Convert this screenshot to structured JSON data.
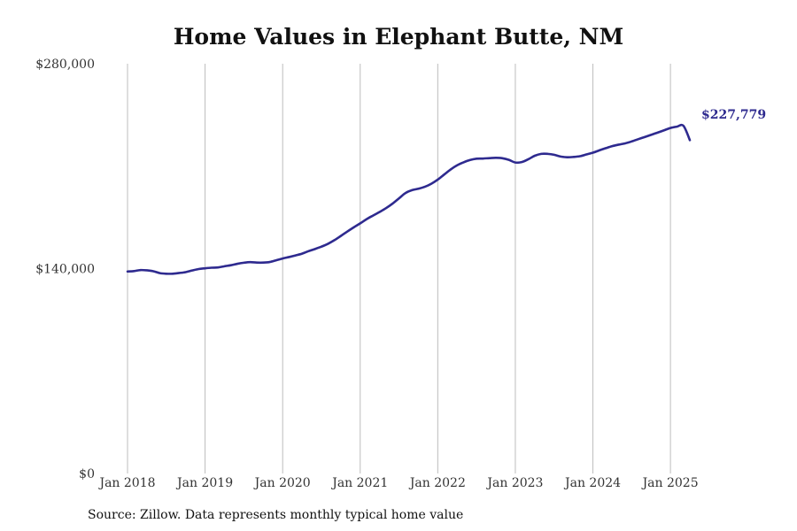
{
  "chart_data": {
    "type": "line",
    "title": "Home Values in Elephant Butte, NM",
    "xlabel": "",
    "ylabel": "",
    "ylim": [
      0,
      280000
    ],
    "yticks": [
      {
        "value": 0,
        "label": "$0"
      },
      {
        "value": 140000,
        "label": "$140,000"
      },
      {
        "value": 280000,
        "label": "$280,000"
      }
    ],
    "xlim": [
      2018.0,
      2025.25
    ],
    "xticks": [
      {
        "value": 2018,
        "label": "Jan 2018"
      },
      {
        "value": 2019,
        "label": "Jan 2019"
      },
      {
        "value": 2020,
        "label": "Jan 2020"
      },
      {
        "value": 2021,
        "label": "Jan 2021"
      },
      {
        "value": 2022,
        "label": "Jan 2022"
      },
      {
        "value": 2023,
        "label": "Jan 2023"
      },
      {
        "value": 2024,
        "label": "Jan 2024"
      },
      {
        "value": 2025,
        "label": "Jan 2025"
      }
    ],
    "grid": {
      "vertical": true,
      "horizontal": false
    },
    "line_color": "#2e2a8f",
    "end_label": "$227,779",
    "series": [
      {
        "x": [
          2018.0,
          2018.083,
          2018.167,
          2018.25,
          2018.333,
          2018.417,
          2018.5,
          2018.583,
          2018.667,
          2018.75,
          2018.833,
          2018.917,
          2019.0,
          2019.083,
          2019.167,
          2019.25,
          2019.333,
          2019.417,
          2019.5,
          2019.583,
          2019.667,
          2019.75,
          2019.833,
          2019.917,
          2020.0,
          2020.083,
          2020.167,
          2020.25,
          2020.333,
          2020.417,
          2020.5,
          2020.583,
          2020.667,
          2020.75,
          2020.833,
          2020.917,
          2021.0,
          2021.083,
          2021.167,
          2021.25,
          2021.333,
          2021.417,
          2021.5,
          2021.583,
          2021.667,
          2021.75,
          2021.833,
          2021.917,
          2022.0,
          2022.083,
          2022.167,
          2022.25,
          2022.333,
          2022.417,
          2022.5,
          2022.583,
          2022.667,
          2022.75,
          2022.833,
          2022.917,
          2023.0,
          2023.083,
          2023.167,
          2023.25,
          2023.333,
          2023.417,
          2023.5,
          2023.583,
          2023.667,
          2023.75,
          2023.833,
          2023.917,
          2024.0,
          2024.083,
          2024.167,
          2024.25,
          2024.333,
          2024.417,
          2024.5,
          2024.583,
          2024.667,
          2024.75,
          2024.833,
          2024.917,
          2025.0,
          2025.083,
          2025.167,
          2025.25
        ],
        "y": [
          138000,
          138300,
          139000,
          138800,
          138200,
          136900,
          136500,
          136500,
          137000,
          137600,
          138700,
          139700,
          140200,
          140600,
          140800,
          141600,
          142300,
          143300,
          144000,
          144400,
          144100,
          144100,
          144500,
          145700,
          146900,
          147900,
          149000,
          150200,
          151900,
          153400,
          155000,
          156900,
          159400,
          162300,
          165300,
          168200,
          170900,
          173800,
          176300,
          178700,
          181300,
          184400,
          188000,
          191600,
          193600,
          194600,
          195900,
          198000,
          200800,
          204300,
          207800,
          210600,
          212600,
          214200,
          215100,
          215200,
          215500,
          215700,
          215400,
          214300,
          212500,
          212800,
          214700,
          217100,
          218400,
          218400,
          217800,
          216600,
          216100,
          216300,
          216800,
          218000,
          219200,
          220800,
          222300,
          223700,
          224700,
          225600,
          226900,
          228400,
          229900,
          231400,
          232900,
          234500,
          236100,
          237000,
          237600,
          227779
        ]
      }
    ]
  },
  "footer": {
    "source": "Source: Zillow. Data represents monthly typical home value"
  }
}
